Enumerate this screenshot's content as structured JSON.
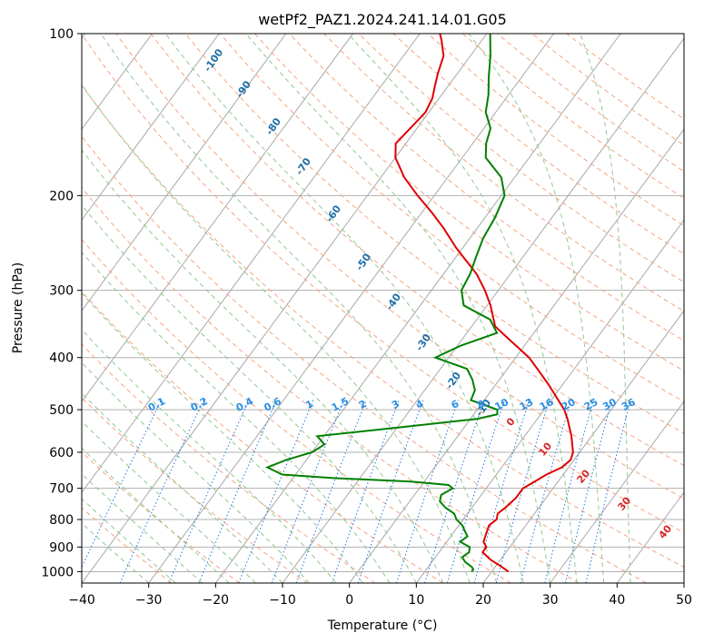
{
  "chart_data": {
    "type": "skew-t log-p",
    "title": "wetPf2_PAZ1.2024.241.14.01.G05",
    "xlabel": "Temperature (°C)",
    "ylabel": "Pressure (hPa)",
    "xlim": [
      -40,
      50
    ],
    "ylim": [
      1050,
      100
    ],
    "y_scale": "log",
    "x_ticks": [
      "−40",
      "−30",
      "−20",
      "−10",
      "0",
      "10",
      "20",
      "30",
      "40",
      "50"
    ],
    "x_tick_values": [
      -40,
      -30,
      -20,
      -10,
      0,
      10,
      20,
      30,
      40,
      50
    ],
    "y_ticks": [
      "100",
      "200",
      "300",
      "400",
      "500",
      "600",
      "700",
      "800",
      "900",
      "1000"
    ],
    "y_tick_values": [
      100,
      200,
      300,
      400,
      500,
      600,
      700,
      800,
      900,
      1000
    ],
    "grid": true,
    "colors": {
      "temperature": "#e00000",
      "dewpoint": "#008000",
      "dry_adiabat": "#f4a582",
      "moist_adiabat": "#8fc98f",
      "mixing_ratio": "#1f77e0",
      "isotherm": "#888888",
      "dry_label": "#d62728",
      "moist_label": "#1f6fa8",
      "mixing_label": "#2a8fe6"
    },
    "temperature": {
      "pressure": [
        1000,
        980,
        950,
        920,
        900,
        880,
        850,
        820,
        800,
        780,
        760,
        730,
        700,
        680,
        660,
        640,
        620,
        600,
        560,
        520,
        500,
        450,
        420,
        400,
        370,
        350,
        320,
        300,
        280,
        250,
        230,
        215,
        200,
        185,
        170,
        160,
        150,
        140,
        132,
        125,
        118,
        110,
        103,
        100
      ],
      "temp": [
        22.5,
        21.0,
        18.5,
        16.5,
        16.5,
        15.5,
        15.0,
        14.5,
        15.0,
        14.5,
        15.0,
        15.5,
        15.5,
        16.5,
        17.5,
        19.0,
        19.5,
        19.0,
        17.0,
        14.5,
        13.0,
        8.0,
        4.5,
        2.0,
        -3.0,
        -6.5,
        -9.5,
        -12.0,
        -15.0,
        -21.0,
        -25.0,
        -28.5,
        -32.5,
        -36.5,
        -40.0,
        -41.5,
        -41.0,
        -40.5,
        -41.0,
        -42.0,
        -43.0,
        -44.0,
        -46.0,
        -47.0
      ]
    },
    "dewpoint": {
      "pressure": [
        1000,
        990,
        980,
        960,
        940,
        920,
        900,
        880,
        860,
        840,
        820,
        800,
        780,
        760,
        740,
        720,
        700,
        690,
        680,
        670,
        660,
        640,
        620,
        600,
        580,
        560,
        540,
        520,
        510,
        500,
        480,
        460,
        440,
        420,
        400,
        380,
        360,
        340,
        320,
        300,
        280,
        260,
        240,
        220,
        200,
        185,
        170,
        160,
        150,
        140,
        130,
        120,
        110,
        100
      ],
      "dewpoint": [
        17.0,
        17.0,
        16.5,
        15.0,
        14.0,
        14.5,
        14.0,
        12.0,
        12.5,
        11.5,
        10.5,
        9.0,
        8.0,
        6.0,
        4.5,
        4.0,
        5.0,
        4.0,
        -2.0,
        -14.0,
        -22.0,
        -25.0,
        -23.0,
        -20.0,
        -19.0,
        -21.0,
        -10.0,
        1.0,
        3.5,
        3.0,
        -2.0,
        -2.5,
        -4.0,
        -6.0,
        -12.0,
        -9.5,
        -5.5,
        -8.0,
        -13.5,
        -15.5,
        -16.0,
        -17.0,
        -18.0,
        -18.5,
        -19.5,
        -22.0,
        -26.5,
        -28.0,
        -29.0,
        -31.5,
        -33.0,
        -35.0,
        -37.0,
        -39.5
      ]
    },
    "dry_adiabat_labels": [
      "0",
      "10",
      "20",
      "30",
      "40"
    ],
    "dry_adiabat_label_values": [
      0,
      10,
      20,
      30,
      40
    ],
    "moist_adiabat_labels": [
      "-100",
      "-90",
      "-80",
      "-70",
      "-60",
      "-50",
      "-40",
      "-30",
      "-20",
      "-10"
    ],
    "moist_adiabat_label_values": [
      -100,
      -90,
      -80,
      -70,
      -60,
      -50,
      -40,
      -30,
      -20,
      -10
    ],
    "mixing_ratio_labels": [
      "0.1",
      "0.2",
      "0.4",
      "0.6",
      "1",
      "1.5",
      "2",
      "3",
      "4",
      "6",
      "8",
      "10",
      "13",
      "16",
      "20",
      "25",
      "30",
      "36"
    ],
    "mixing_ratio_label_values": [
      0.1,
      0.2,
      0.4,
      0.6,
      1,
      1.5,
      2,
      3,
      4,
      6,
      8,
      10,
      13,
      16,
      20,
      25,
      30,
      36
    ]
  }
}
